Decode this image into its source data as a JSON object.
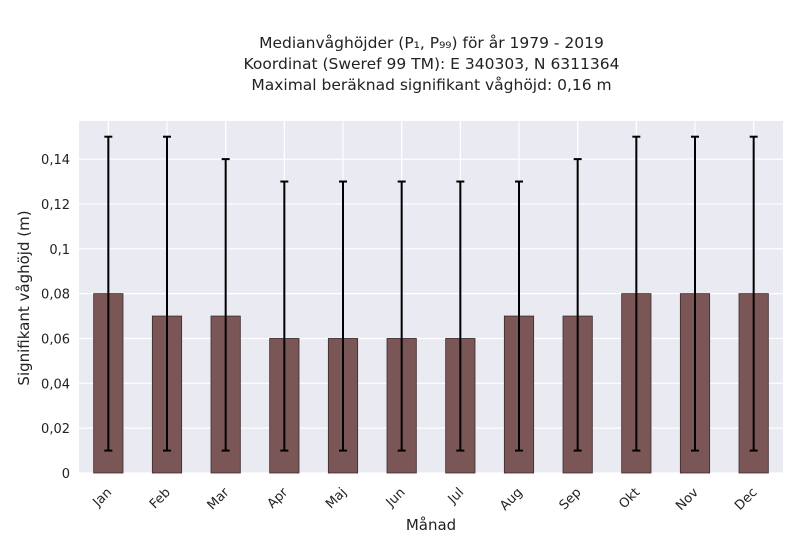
{
  "chart_data": {
    "type": "bar",
    "title_lines": [
      "Medianvåghöjder (P₁, P₉₉) för år 1979 - 2019",
      "Koordinat (Sweref 99 TM): E 340303, N 6311364",
      "Maximal beräknad signifikant våghöjd: 0,16 m"
    ],
    "xlabel": "Månad",
    "ylabel": "Signifikant våghöjd (m)",
    "categories": [
      "Jan",
      "Feb",
      "Mar",
      "Apr",
      "Maj",
      "Jun",
      "Jul",
      "Aug",
      "Sep",
      "Okt",
      "Nov",
      "Dec"
    ],
    "values": [
      0.08,
      0.07,
      0.07,
      0.06,
      0.06,
      0.06,
      0.06,
      0.07,
      0.07,
      0.08,
      0.08,
      0.08
    ],
    "error_low": [
      0.01,
      0.01,
      0.01,
      0.01,
      0.01,
      0.01,
      0.01,
      0.01,
      0.01,
      0.01,
      0.01,
      0.01
    ],
    "error_high": [
      0.15,
      0.15,
      0.14,
      0.13,
      0.13,
      0.13,
      0.13,
      0.13,
      0.14,
      0.15,
      0.15,
      0.15
    ],
    "ylim": [
      0,
      0.157
    ],
    "yticks": [
      0,
      0.02,
      0.04,
      0.06,
      0.08,
      0.1,
      0.12,
      0.14
    ],
    "ytick_labels": [
      "0",
      "0,02",
      "0,04",
      "0,06",
      "0,08",
      "0,1",
      "0,12",
      "0,14"
    ],
    "grid": true,
    "colors": {
      "bar": "#7b5656",
      "bar_edge": "#3a2a2a",
      "errorbar": "#000000",
      "plot_background": "#eaeaf2",
      "grid": "#ffffff"
    }
  }
}
